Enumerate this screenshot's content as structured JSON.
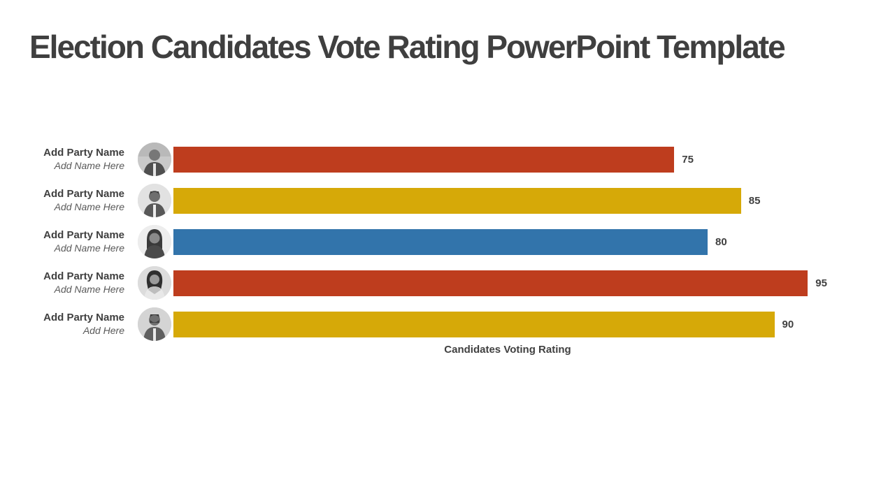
{
  "title": "Election Candidates Vote Rating PowerPoint Template",
  "chart_data": {
    "type": "bar",
    "orientation": "horizontal",
    "title": "",
    "xlabel": "Candidates Voting Rating",
    "ylabel": "",
    "xlim": [
      0,
      100
    ],
    "grid": false,
    "legend": "none",
    "value_labels_shown": true,
    "categories": [
      "Add Party Name",
      "Add Party Name",
      "Add Party Name",
      "Add Party Name",
      "Add Party Name"
    ],
    "values": [
      75,
      85,
      80,
      95,
      90
    ],
    "rows": [
      {
        "party": "Add Party Name",
        "name": "Add Name Here",
        "value": 75,
        "color": "#BE3D1E",
        "avatar": "grayscale-portrait-man-suit"
      },
      {
        "party": "Add Party Name",
        "name": "Add Name Here",
        "value": 85,
        "color": "#D6A908",
        "avatar": "grayscale-portrait-man-beard-glasses"
      },
      {
        "party": "Add Party Name",
        "name": "Add Name Here",
        "value": 80,
        "color": "#3274AB",
        "avatar": "grayscale-portrait-woman-glasses"
      },
      {
        "party": "Add Party Name",
        "name": "Add Name Here",
        "value": 95,
        "color": "#BE3D1E",
        "avatar": "grayscale-portrait-woman"
      },
      {
        "party": "Add Party Name",
        "name": "Add Here",
        "value": 90,
        "color": "#D6A908",
        "avatar": "grayscale-portrait-man-beard"
      }
    ]
  },
  "colors": {
    "background": "#FFFFFF",
    "title_text": "#3F3F3F",
    "party_text": "#404040",
    "name_text": "#595959",
    "value_text": "#404040",
    "bar_red": "#BE3D1E",
    "bar_gold": "#D6A908",
    "bar_blue": "#3274AB"
  }
}
